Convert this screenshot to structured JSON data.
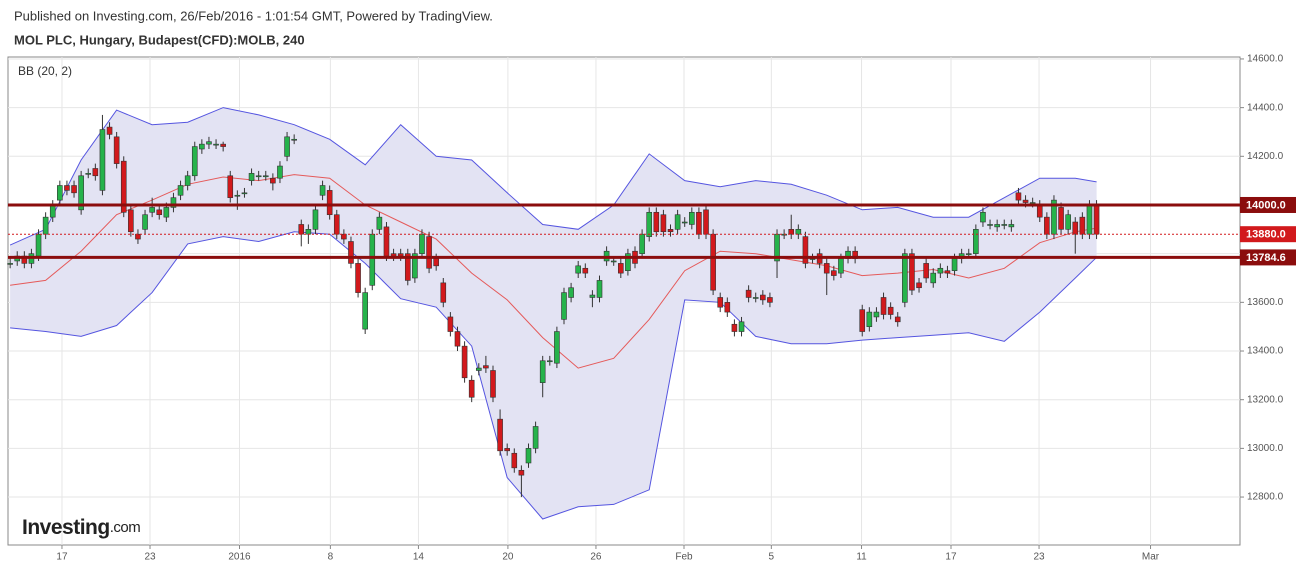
{
  "chart_data": {
    "type": "candlestick",
    "published": "Published on Investing.com, 26/Feb/2016 - 1:01:54 GMT, Powered by TradingView.",
    "title": "MOL PLC, Hungary, Budapest(CFD):MOLB, 240",
    "indicator": "BB (20, 2)",
    "logo": [
      "Investing",
      ".com"
    ],
    "up_color": "#26b34b",
    "down_color": "#d2191c",
    "open": [
      13760,
      13770,
      13790,
      13760,
      13790,
      13880,
      13950,
      14020,
      14080,
      14080,
      13980,
      14130,
      14150,
      14060,
      14320,
      14280,
      14180,
      13980,
      13880,
      13900,
      13970,
      13980,
      13950,
      13990,
      14040,
      14080,
      14120,
      14230,
      14250,
      14250,
      14250,
      14120,
      14040,
      14050,
      14100,
      14120,
      14120,
      14110,
      14110,
      14200,
      14270,
      13920,
      13880,
      13900,
      14040,
      14060,
      13960,
      13880,
      13850,
      13760,
      13490,
      13670,
      13900,
      13910,
      13800,
      13800,
      13800,
      13700,
      13800,
      13870,
      13780,
      13680,
      13540,
      13480,
      13420,
      13280,
      13320,
      13340,
      13320,
      13120,
      13000,
      12980,
      12910,
      12940,
      13000,
      13270,
      13360,
      13350,
      13530,
      13620,
      13720,
      13740,
      13620,
      13620,
      13770,
      13770,
      13760,
      13730,
      13810,
      13800,
      13870,
      13970,
      13960,
      13900,
      13900,
      13930,
      13920,
      13970,
      13980,
      13880,
      13620,
      13600,
      13510,
      13480,
      13650,
      13620,
      13630,
      13620,
      13770,
      13880,
      13900,
      13880,
      13870,
      13780,
      13800,
      13760,
      13730,
      13720,
      13780,
      13810,
      13570,
      13500,
      13540,
      13620,
      13580,
      13540,
      13600,
      13800,
      13680,
      13760,
      13680,
      13720,
      13730,
      13730,
      13780,
      13800,
      13800,
      13930,
      13920,
      13910,
      13920,
      13910,
      14050,
      14020,
      14010,
      14000,
      13950,
      13880,
      13990,
      13900,
      13930,
      13950,
      13880,
      14000
    ],
    "high": [
      13780,
      13810,
      13810,
      13820,
      13900,
      13970,
      14020,
      14100,
      14100,
      14100,
      14140,
      14150,
      14170,
      14370,
      14340,
      14300,
      14200,
      14000,
      13900,
      13980,
      14030,
      14000,
      14010,
      14050,
      14100,
      14140,
      14260,
      14270,
      14280,
      14270,
      14260,
      14140,
      14060,
      14070,
      14150,
      14140,
      14140,
      14130,
      14180,
      14300,
      14290,
      13940,
      13920,
      14000,
      14100,
      14080,
      13980,
      13900,
      13870,
      13780,
      13660,
      13900,
      13970,
      13930,
      13820,
      13820,
      13820,
      13820,
      13900,
      13890,
      13800,
      13700,
      13560,
      13500,
      13440,
      13300,
      13350,
      13380,
      13340,
      13160,
      13020,
      13000,
      12930,
      13020,
      13110,
      13380,
      13380,
      13500,
      13660,
      13680,
      13770,
      13760,
      13650,
      13710,
      13830,
      13790,
      13780,
      13820,
      13830,
      13900,
      13990,
      13990,
      13980,
      13920,
      13980,
      13950,
      13990,
      13990,
      14000,
      13900,
      13640,
      13620,
      13530,
      13540,
      13670,
      13640,
      13650,
      13640,
      13900,
      13900,
      13960,
      13920,
      13890,
      13800,
      13820,
      13780,
      13750,
      13800,
      13830,
      13830,
      13590,
      13580,
      13580,
      13640,
      13600,
      13560,
      13820,
      13820,
      13700,
      13780,
      13740,
      13760,
      13750,
      13800,
      13820,
      13820,
      13920,
      13990,
      13940,
      13940,
      13940,
      13940,
      14070,
      14040,
      14030,
      14020,
      13970,
      14040,
      14010,
      13980,
      13950,
      13970,
      14020,
      14020
    ],
    "low": [
      13740,
      13750,
      13740,
      13740,
      13770,
      13860,
      13930,
      14000,
      14040,
      14030,
      13960,
      14110,
      14100,
      14040,
      14270,
      14150,
      13950,
      13870,
      13840,
      13880,
      13950,
      13940,
      13930,
      13970,
      14020,
      14060,
      14100,
      14210,
      14230,
      14230,
      14220,
      14010,
      13980,
      14030,
      14080,
      14100,
      14100,
      14060,
      14090,
      14180,
      14250,
      13830,
      13840,
      13880,
      14020,
      13940,
      13860,
      13840,
      13740,
      13620,
      13470,
      13650,
      13880,
      13770,
      13770,
      13770,
      13670,
      13680,
      13780,
      13720,
      13730,
      13580,
      13460,
      13400,
      13270,
      13190,
      13300,
      13310,
      13190,
      12970,
      12970,
      12900,
      12800,
      12920,
      12980,
      13210,
      13340,
      13330,
      13510,
      13600,
      13700,
      13700,
      13580,
      13600,
      13750,
      13750,
      13700,
      13710,
      13740,
      13780,
      13850,
      13870,
      13870,
      13870,
      13880,
      13910,
      13900,
      13860,
      13860,
      13630,
      13560,
      13540,
      13460,
      13460,
      13600,
      13600,
      13590,
      13580,
      13700,
      13860,
      13860,
      13860,
      13740,
      13760,
      13740,
      13630,
      13690,
      13700,
      13760,
      13760,
      13460,
      13480,
      13520,
      13530,
      13530,
      13500,
      13580,
      13630,
      13640,
      13680,
      13660,
      13700,
      13700,
      13710,
      13760,
      13780,
      13780,
      13910,
      13900,
      13890,
      13900,
      13890,
      14000,
      13990,
      13990,
      13930,
      13860,
      13860,
      13880,
      13880,
      13800,
      13860,
      13860,
      13860
    ],
    "close": [
      13760,
      13790,
      13760,
      13800,
      13880,
      13950,
      14000,
      14080,
      14060,
      14050,
      14120,
      14130,
      14120,
      14310,
      14290,
      14170,
      13970,
      13890,
      13860,
      13960,
      13990,
      13960,
      13990,
      14030,
      14080,
      14120,
      14240,
      14250,
      14260,
      14250,
      14240,
      14030,
      14040,
      14050,
      14130,
      14120,
      14120,
      14090,
      14160,
      14280,
      14270,
      13880,
      13900,
      13980,
      14080,
      13960,
      13880,
      13860,
      13760,
      13640,
      13640,
      13880,
      13950,
      13790,
      13790,
      13790,
      13690,
      13800,
      13880,
      13740,
      13750,
      13600,
      13480,
      13420,
      13290,
      13210,
      13330,
      13330,
      13210,
      12990,
      12990,
      12920,
      12890,
      13000,
      13090,
      13360,
      13360,
      13480,
      13640,
      13660,
      13750,
      13720,
      13630,
      13690,
      13810,
      13770,
      13720,
      13800,
      13760,
      13880,
      13970,
      13890,
      13890,
      13890,
      13960,
      13930,
      13970,
      13880,
      13880,
      13650,
      13580,
      13560,
      13480,
      13520,
      13620,
      13620,
      13610,
      13600,
      13880,
      13880,
      13880,
      13900,
      13760,
      13780,
      13760,
      13720,
      13710,
      13780,
      13810,
      13780,
      13480,
      13560,
      13560,
      13550,
      13550,
      13520,
      13800,
      13650,
      13660,
      13700,
      13720,
      13740,
      13720,
      13780,
      13800,
      13800,
      13900,
      13970,
      13920,
      13920,
      13920,
      13920,
      14020,
      14010,
      14010,
      13950,
      13880,
      14020,
      13900,
      13960,
      13880,
      13880,
      14000,
      13880
    ],
    "bb": {
      "x": [
        0,
        5,
        10,
        15,
        20,
        25,
        30,
        35,
        40,
        45,
        50,
        55,
        60,
        65,
        70,
        75,
        80,
        85,
        90,
        95,
        100,
        105,
        110,
        115,
        120,
        125,
        130,
        135,
        140,
        145,
        150,
        153
      ],
      "upper": [
        13835,
        13900,
        14185,
        14390,
        14330,
        14340,
        14400,
        14370,
        14330,
        14270,
        14165,
        14330,
        14200,
        14185,
        14050,
        13920,
        13900,
        14000,
        14210,
        14100,
        14075,
        14100,
        14085,
        14040,
        13980,
        13990,
        13950,
        13950,
        14030,
        14110,
        14110,
        14095
      ],
      "middle": [
        13670,
        13690,
        13810,
        13960,
        14020,
        14085,
        14115,
        14100,
        14125,
        14110,
        14000,
        13930,
        13860,
        13720,
        13610,
        13455,
        13330,
        13370,
        13530,
        13730,
        13810,
        13800,
        13775,
        13750,
        13710,
        13720,
        13735,
        13700,
        13740,
        13845,
        13890,
        13905
      ],
      "lower": [
        13495,
        13480,
        13460,
        13505,
        13640,
        13840,
        13870,
        13850,
        13890,
        13880,
        13760,
        13615,
        13580,
        13420,
        12880,
        12710,
        12760,
        12770,
        12830,
        13610,
        13600,
        13460,
        13430,
        13430,
        13445,
        13455,
        13465,
        13475,
        13440,
        13560,
        13700,
        13785
      ],
      "band_color": "#5555e0",
      "fill_color": "#e3e3f3",
      "middle_color": "#e55a5a"
    },
    "levels": [
      {
        "value": 14000,
        "label": "14000.0",
        "color": "#8b0d0d",
        "style": "solid"
      },
      {
        "value": 13880,
        "label": "13880.0",
        "color": "#d2191c",
        "style": "dotted"
      },
      {
        "value": 13784.6,
        "label": "13784.6",
        "color": "#8b0d0d",
        "style": "solid"
      }
    ],
    "xlim": [
      -0.3,
      173.2
    ],
    "ylim": [
      12603,
      14608
    ],
    "yticks": [
      {
        "value": 12800,
        "label": "12800.0"
      },
      {
        "value": 13000,
        "label": "13000.0"
      },
      {
        "value": 13200,
        "label": "13200.0"
      },
      {
        "value": 13400,
        "label": "13400.0"
      },
      {
        "value": 13600,
        "label": "13600.0"
      },
      {
        "value": 13800,
        "label": "13800.0"
      },
      {
        "value": 14000,
        "label": "14000.0"
      },
      {
        "value": 14200,
        "label": "14200.0"
      },
      {
        "value": 14400,
        "label": "14400.0"
      },
      {
        "value": 14600,
        "label": "14600.0"
      }
    ],
    "xticks": [
      {
        "value": 7.3,
        "label": "17"
      },
      {
        "value": 19.7,
        "label": "23"
      },
      {
        "value": 32.3,
        "label": "2016"
      },
      {
        "value": 45.1,
        "label": "8"
      },
      {
        "value": 57.5,
        "label": "14"
      },
      {
        "value": 70.1,
        "label": "20"
      },
      {
        "value": 82.5,
        "label": "26"
      },
      {
        "value": 94.9,
        "label": "Feb"
      },
      {
        "value": 107.2,
        "label": "5"
      },
      {
        "value": 119.9,
        "label": "11"
      },
      {
        "value": 132.5,
        "label": "17"
      },
      {
        "value": 144.9,
        "label": "23"
      },
      {
        "value": 160.6,
        "label": "Mar"
      }
    ],
    "grid": true
  }
}
